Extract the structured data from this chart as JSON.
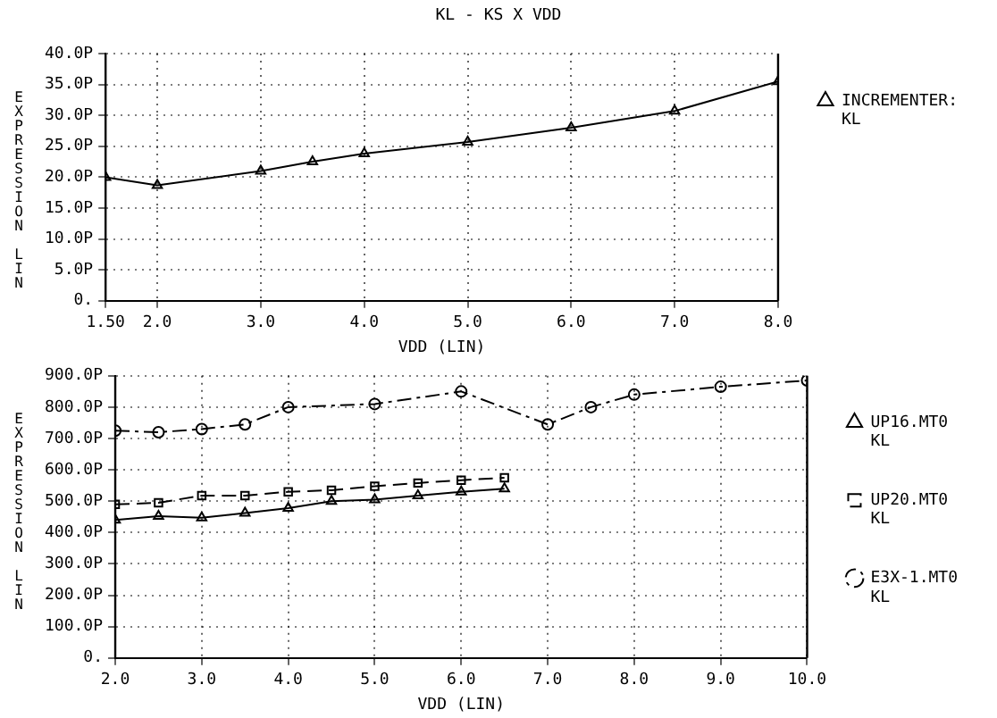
{
  "chart_data": [
    {
      "type": "line",
      "title": "KL - KS X VDD",
      "xlabel": "VDD (LIN)",
      "ylabel": "EXPRESSION LIN",
      "grid": true,
      "legend": "right",
      "xlim": [
        1.5,
        8
      ],
      "xticks": [
        {
          "value": 1.5,
          "label": "1.50"
        },
        {
          "value": 2,
          "label": "2.0"
        },
        {
          "value": 3,
          "label": "3.0"
        },
        {
          "value": 4,
          "label": "4.0"
        },
        {
          "value": 5,
          "label": "5.0"
        },
        {
          "value": 6,
          "label": "6.0"
        },
        {
          "value": 7,
          "label": "7.0"
        },
        {
          "value": 8,
          "label": "8.0"
        }
      ],
      "ylim": [
        0,
        40
      ],
      "yticks": [
        {
          "value": 0,
          "label": "0."
        },
        {
          "value": 5,
          "label": "5.0P"
        },
        {
          "value": 10,
          "label": "10.0P"
        },
        {
          "value": 15,
          "label": "15.0P"
        },
        {
          "value": 20,
          "label": "20.0P"
        },
        {
          "value": 25,
          "label": "25.0P"
        },
        {
          "value": 30,
          "label": "30.0P"
        },
        {
          "value": 35,
          "label": "35.0P"
        },
        {
          "value": 40,
          "label": "40.0P"
        }
      ],
      "series": [
        {
          "name": "INCREMENTER:\nKL",
          "color": "#000000",
          "marker": "triangle",
          "line_style": "solid",
          "x": [
            1.5,
            2,
            3,
            3.5,
            4,
            5,
            6,
            7,
            8
          ],
          "values": [
            20,
            18.7,
            21,
            22.5,
            23.8,
            25.7,
            28,
            30.7,
            35.5
          ]
        }
      ]
    },
    {
      "type": "line",
      "xlabel": "VDD (LIN)",
      "ylabel": "EXPRESSION LIN",
      "grid": true,
      "legend": "right",
      "xlim": [
        2,
        10
      ],
      "xticks": [
        {
          "value": 2,
          "label": "2.0"
        },
        {
          "value": 3,
          "label": "3.0"
        },
        {
          "value": 4,
          "label": "4.0"
        },
        {
          "value": 5,
          "label": "5.0"
        },
        {
          "value": 6,
          "label": "6.0"
        },
        {
          "value": 7,
          "label": "7.0"
        },
        {
          "value": 8,
          "label": "8.0"
        },
        {
          "value": 9,
          "label": "9.0"
        },
        {
          "value": 10,
          "label": "10.0"
        }
      ],
      "ylim": [
        0,
        900
      ],
      "yticks": [
        {
          "value": 0,
          "label": "0."
        },
        {
          "value": 100,
          "label": "100.0P"
        },
        {
          "value": 200,
          "label": "200.0P"
        },
        {
          "value": 300,
          "label": "300.0P"
        },
        {
          "value": 400,
          "label": "400.0P"
        },
        {
          "value": 500,
          "label": "500.0P"
        },
        {
          "value": 600,
          "label": "600.0P"
        },
        {
          "value": 700,
          "label": "700.0P"
        },
        {
          "value": 800,
          "label": "800.0P"
        },
        {
          "value": 900,
          "label": "900.0P"
        }
      ],
      "series": [
        {
          "name": "UP16.MT0\nKL",
          "color": "#000000",
          "marker": "triangle",
          "line_style": "solid",
          "x": [
            2,
            2.5,
            3,
            3.5,
            4,
            4.5,
            5,
            5.5,
            6,
            6.5
          ],
          "values": [
            440,
            452,
            447,
            462,
            478,
            500,
            505,
            518,
            530,
            540
          ]
        },
        {
          "name": "UP20.MT0\nKL",
          "color": "#000000",
          "marker": "square",
          "line_style": "dashed",
          "x": [
            2,
            2.5,
            3,
            3.5,
            4,
            4.5,
            5,
            5.5,
            6,
            6.5
          ],
          "values": [
            490,
            495,
            518,
            518,
            530,
            535,
            548,
            558,
            567,
            575
          ]
        },
        {
          "name": "E3X-1.MT0\nKL",
          "color": "#000000",
          "marker": "circle",
          "line_style": "dashdot",
          "x": [
            2,
            2.5,
            3,
            3.5,
            4,
            5,
            6,
            7,
            7.5,
            8,
            9,
            10
          ],
          "values": [
            725,
            720,
            730,
            745,
            800,
            810,
            850,
            745,
            800,
            840,
            865,
            885
          ]
        }
      ]
    }
  ]
}
